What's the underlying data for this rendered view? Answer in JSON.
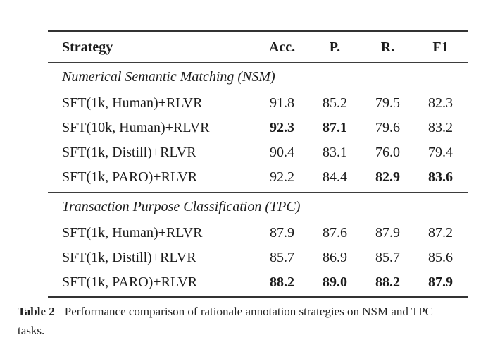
{
  "colors": {
    "background": "#ffffff",
    "text": "#1c1c1c",
    "rule": "#3d3d3d"
  },
  "table": {
    "columns": [
      "Strategy",
      "Acc.",
      "P.",
      "R.",
      "F1"
    ],
    "sections": [
      {
        "title": "Numerical Semantic Matching (NSM)",
        "rows": [
          {
            "strategy": "SFT(1k, Human)+RLVR",
            "values": [
              "91.8",
              "85.2",
              "79.5",
              "82.3"
            ],
            "bold": [
              false,
              false,
              false,
              false
            ]
          },
          {
            "strategy": "SFT(10k, Human)+RLVR",
            "values": [
              "92.3",
              "87.1",
              "79.6",
              "83.2"
            ],
            "bold": [
              true,
              true,
              false,
              false
            ]
          },
          {
            "strategy": "SFT(1k, Distill)+RLVR",
            "values": [
              "90.4",
              "83.1",
              "76.0",
              "79.4"
            ],
            "bold": [
              false,
              false,
              false,
              false
            ]
          },
          {
            "strategy": "SFT(1k, PARO)+RLVR",
            "values": [
              "92.2",
              "84.4",
              "82.9",
              "83.6"
            ],
            "bold": [
              false,
              false,
              true,
              true
            ]
          }
        ]
      },
      {
        "title": "Transaction Purpose Classification (TPC)",
        "rows": [
          {
            "strategy": "SFT(1k, Human)+RLVR",
            "values": [
              "87.9",
              "87.6",
              "87.9",
              "87.2"
            ],
            "bold": [
              false,
              false,
              false,
              false
            ]
          },
          {
            "strategy": "SFT(1k, Distill)+RLVR",
            "values": [
              "85.7",
              "86.9",
              "85.7",
              "85.6"
            ],
            "bold": [
              false,
              false,
              false,
              false
            ]
          },
          {
            "strategy": "SFT(1k, PARO)+RLVR",
            "values": [
              "88.2",
              "89.0",
              "88.2",
              "87.9"
            ],
            "bold": [
              true,
              true,
              true,
              true
            ]
          }
        ]
      }
    ]
  },
  "caption": {
    "label": "Table 2",
    "line1": "Performance comparison of rationale annotation strategies on NSM and TPC",
    "line2": "tasks."
  }
}
